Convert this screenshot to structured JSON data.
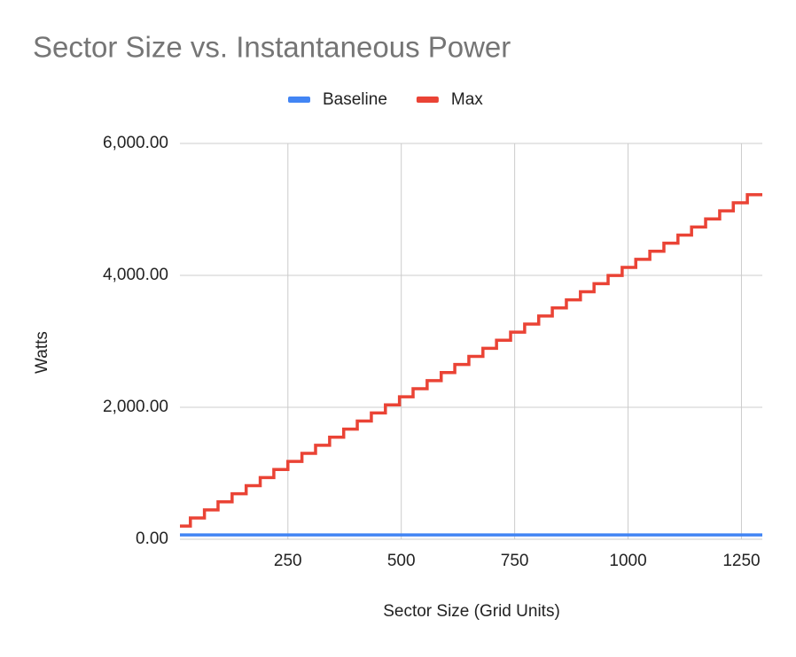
{
  "chart_data": {
    "type": "line",
    "step": true,
    "title": "Sector Size vs. Instantaneous Power",
    "x_label": "Sector Size (Grid Units)",
    "y_label": "Watts",
    "xlim": [
      12,
      1296
    ],
    "ylim": [
      0,
      6000
    ],
    "xticks": [
      250,
      500,
      750,
      1000,
      1250
    ],
    "yticks": [
      {
        "value": 0,
        "label": "0.00"
      },
      {
        "value": 2000,
        "label": "2,000.00"
      },
      {
        "value": 4000,
        "label": "4,000.00"
      },
      {
        "value": 6000,
        "label": "6,000.00"
      }
    ],
    "grid": true,
    "legend": "top",
    "series": [
      {
        "name": "Baseline",
        "color": "#4285f4",
        "x": [
          12,
          1296
        ],
        "values": [
          65,
          65
        ]
      },
      {
        "name": "Max",
        "color": "#ea4335",
        "x": [
          12,
          35,
          66,
          96,
          127,
          158,
          189,
          219,
          250,
          281,
          311,
          342,
          373,
          403,
          434,
          465,
          496,
          526,
          557,
          588,
          618,
          649,
          680,
          710,
          741,
          772,
          803,
          833,
          864,
          895,
          925,
          956,
          987,
          1017,
          1048,
          1079,
          1110,
          1140,
          1171,
          1202,
          1232,
          1263
        ],
        "values": [
          200,
          322.5,
          445,
          567.5,
          690,
          812.5,
          935,
          1057.5,
          1180,
          1302.5,
          1425,
          1547.5,
          1670,
          1792.5,
          1915,
          2037.5,
          2160,
          2282.5,
          2405,
          2527.5,
          2650,
          2772.5,
          2895,
          3017.5,
          3140,
          3262.5,
          3385,
          3507.5,
          3630,
          3752.5,
          3875,
          3997.5,
          4120,
          4242.5,
          4365,
          4487.5,
          4610,
          4732.5,
          4855,
          4977.5,
          5100,
          5222.5
        ]
      }
    ]
  }
}
